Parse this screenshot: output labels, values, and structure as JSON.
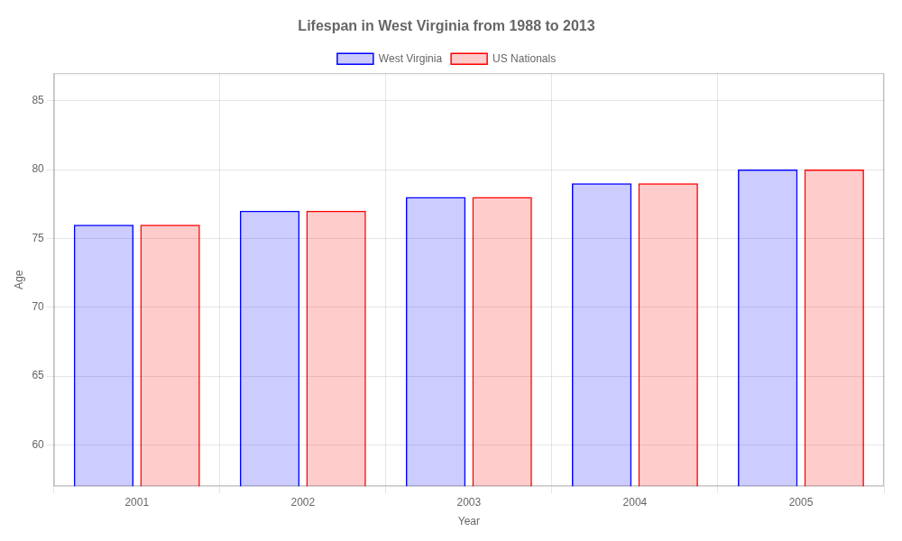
{
  "chart_data": {
    "type": "bar",
    "title": "Lifespan in West Virginia from 1988 to 2013",
    "xlabel": "Year",
    "ylabel": "Age",
    "categories": [
      "2001",
      "2002",
      "2003",
      "2004",
      "2005"
    ],
    "series": [
      {
        "name": "West Virginia",
        "color": "#0000ff",
        "values": [
          76,
          77,
          78,
          79,
          80
        ]
      },
      {
        "name": "US Nationals",
        "color": "#ff0000",
        "values": [
          76,
          77,
          78,
          79,
          80
        ]
      }
    ],
    "ylim": [
      57,
      87
    ],
    "yticks": [
      60,
      65,
      70,
      75,
      80,
      85
    ],
    "grid": true,
    "legend": "top"
  }
}
